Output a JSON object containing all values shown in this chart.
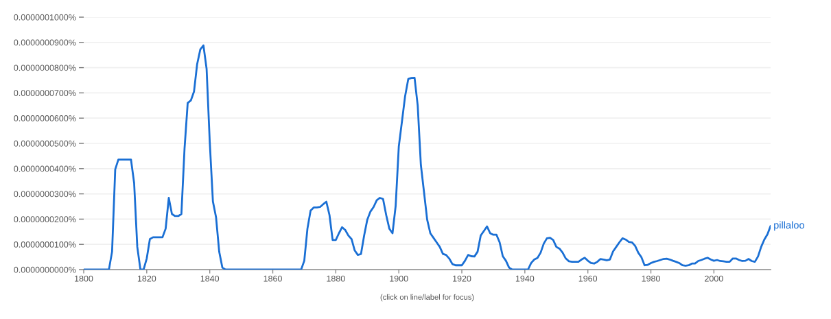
{
  "chart_data": {
    "type": "line",
    "x": [
      1800,
      1808,
      1809,
      1810,
      1811,
      1815,
      1816,
      1817,
      1818,
      1819,
      1820,
      1821,
      1822,
      1825,
      1826,
      1827,
      1828,
      1829,
      1830,
      1831,
      1832,
      1833,
      1834,
      1835,
      1836,
      1837,
      1838,
      1839,
      1840,
      1841,
      1842,
      1843,
      1844,
      1845,
      1869,
      1870,
      1871,
      1872,
      1873,
      1874,
      1875,
      1876,
      1877,
      1878,
      1879,
      1880,
      1881,
      1882,
      1883,
      1884,
      1885,
      1886,
      1887,
      1888,
      1889,
      1890,
      1891,
      1892,
      1893,
      1894,
      1895,
      1896,
      1897,
      1898,
      1899,
      1900,
      1901,
      1902,
      1903,
      1904,
      1905,
      1906,
      1907,
      1908,
      1909,
      1910,
      1911,
      1912,
      1913,
      1914,
      1915,
      1916,
      1917,
      1918,
      1920,
      1921,
      1922,
      1923,
      1924,
      1925,
      1926,
      1927,
      1928,
      1929,
      1930,
      1931,
      1932,
      1933,
      1934,
      1935,
      1936,
      1941,
      1942,
      1943,
      1944,
      1945,
      1946,
      1947,
      1948,
      1949,
      1950,
      1951,
      1952,
      1953,
      1954,
      1955,
      1957,
      1958,
      1959,
      1960,
      1961,
      1962,
      1963,
      1964,
      1965,
      1966,
      1967,
      1968,
      1969,
      1970,
      1971,
      1972,
      1973,
      1974,
      1975,
      1976,
      1977,
      1978,
      1979,
      1980,
      1981,
      1982,
      1983,
      1984,
      1985,
      1986,
      1987,
      1988,
      1989,
      1990,
      1991,
      1992,
      1993,
      1994,
      1995,
      1996,
      1997,
      1998,
      1999,
      2000,
      2001,
      2002,
      2003,
      2004,
      2005,
      2006,
      2007,
      2008,
      2009,
      2010,
      2011,
      2012,
      2013,
      2014,
      2015,
      2016,
      2017,
      2018
    ],
    "series": [
      {
        "name": "pillaloo",
        "color": "#1a6fd4",
        "values": [
          0,
          0,
          7.1e-09,
          3.97e-08,
          4.36e-08,
          4.36e-08,
          3.43e-08,
          9e-09,
          0,
          0,
          4.4e-09,
          1.21e-08,
          1.28e-08,
          1.28e-08,
          1.62e-08,
          2.84e-08,
          2.2e-08,
          2.12e-08,
          2.12e-08,
          2.2e-08,
          4.8e-08,
          6.6e-08,
          6.7e-08,
          7.05e-08,
          8.14e-08,
          8.72e-08,
          8.88e-08,
          7.95e-08,
          5.06e-08,
          2.7e-08,
          2.07e-08,
          7.1e-09,
          8e-10,
          0,
          0,
          3.5e-09,
          1.62e-08,
          2.34e-08,
          2.46e-08,
          2.46e-08,
          2.48e-08,
          2.59e-08,
          2.69e-08,
          2.16e-08,
          1.17e-08,
          1.17e-08,
          1.44e-08,
          1.68e-08,
          1.57e-08,
          1.35e-08,
          1.21e-08,
          7.6e-09,
          5.8e-09,
          6.2e-09,
          1.35e-08,
          1.98e-08,
          2.3e-08,
          2.48e-08,
          2.75e-08,
          2.84e-08,
          2.8e-08,
          2.16e-08,
          1.62e-08,
          1.44e-08,
          2.52e-08,
          4.88e-08,
          5.87e-08,
          6.87e-08,
          7.55e-08,
          7.59e-08,
          7.6e-08,
          6.5e-08,
          4.15e-08,
          3.07e-08,
          1.98e-08,
          1.44e-08,
          1.26e-08,
          1.08e-08,
          9e-09,
          6.2e-09,
          5.8e-09,
          4.4e-09,
          2.2e-09,
          1.7e-09,
          1.7e-09,
          3.5e-09,
          5.8e-09,
          5.3e-09,
          5.2e-09,
          7.1e-09,
          1.35e-08,
          1.53e-08,
          1.71e-08,
          1.44e-08,
          1.38e-08,
          1.38e-08,
          1.08e-08,
          5.3e-09,
          3.5e-09,
          8e-10,
          0,
          0,
          2.6e-09,
          4e-09,
          4.6e-09,
          6.7e-09,
          1.03e-08,
          1.24e-08,
          1.26e-08,
          1.17e-08,
          9e-09,
          8.3e-09,
          6.7e-09,
          4.4e-09,
          3.3e-09,
          3.1e-09,
          3.1e-09,
          4e-09,
          4.7e-09,
          3.5e-09,
          2.6e-09,
          2.4e-09,
          3.1e-09,
          4.2e-09,
          4e-09,
          3.7e-09,
          4e-09,
          7.2e-09,
          9e-09,
          1.08e-08,
          1.24e-08,
          1.19e-08,
          1.1e-08,
          1.08e-08,
          9.4e-09,
          6.7e-09,
          4.9e-09,
          1.7e-09,
          1.9e-09,
          2.6e-09,
          3.1e-09,
          3.4e-09,
          3.8e-09,
          4.2e-09,
          4.3e-09,
          4e-09,
          3.5e-09,
          3.1e-09,
          2.6e-09,
          1.7e-09,
          1.5e-09,
          1.7e-09,
          2.4e-09,
          2.4e-09,
          3.4e-09,
          3.8e-09,
          4.3e-09,
          4.7e-09,
          4e-09,
          3.5e-09,
          3.8e-09,
          3.4e-09,
          3.3e-09,
          3.1e-09,
          3.1e-09,
          4.4e-09,
          4.4e-09,
          3.8e-09,
          3.4e-09,
          3.5e-09,
          4.2e-09,
          3.4e-09,
          3.1e-09,
          5.2e-09,
          9e-09,
          1.19e-08,
          1.4e-08,
          1.73e-08
        ]
      }
    ],
    "xlim": [
      1800,
      2018
    ],
    "xticks": [
      1800,
      1820,
      1840,
      1860,
      1880,
      1900,
      1920,
      1940,
      1960,
      1980,
      2000
    ],
    "ylim": [
      0,
      1e-07
    ],
    "yticks": [
      {
        "value": 0,
        "label": "0.0000000000%"
      },
      {
        "value": 1e-08,
        "label": "0.0000000100%"
      },
      {
        "value": 2e-08,
        "label": "0.0000000200%"
      },
      {
        "value": 3e-08,
        "label": "0.0000000300%"
      },
      {
        "value": 4e-08,
        "label": "0.0000000400%"
      },
      {
        "value": 5e-08,
        "label": "0.0000000500%"
      },
      {
        "value": 6e-08,
        "label": "0.0000000600%"
      },
      {
        "value": 7e-08,
        "label": "0.0000000700%"
      },
      {
        "value": 8e-08,
        "label": "0.0000000800%"
      },
      {
        "value": 9e-08,
        "label": "0.0000000900%"
      },
      {
        "value": 1e-07,
        "label": "0.0000001000%"
      }
    ],
    "grid": "y",
    "line_style": "solid",
    "annotations": [
      "(click on line/label for focus)"
    ]
  }
}
